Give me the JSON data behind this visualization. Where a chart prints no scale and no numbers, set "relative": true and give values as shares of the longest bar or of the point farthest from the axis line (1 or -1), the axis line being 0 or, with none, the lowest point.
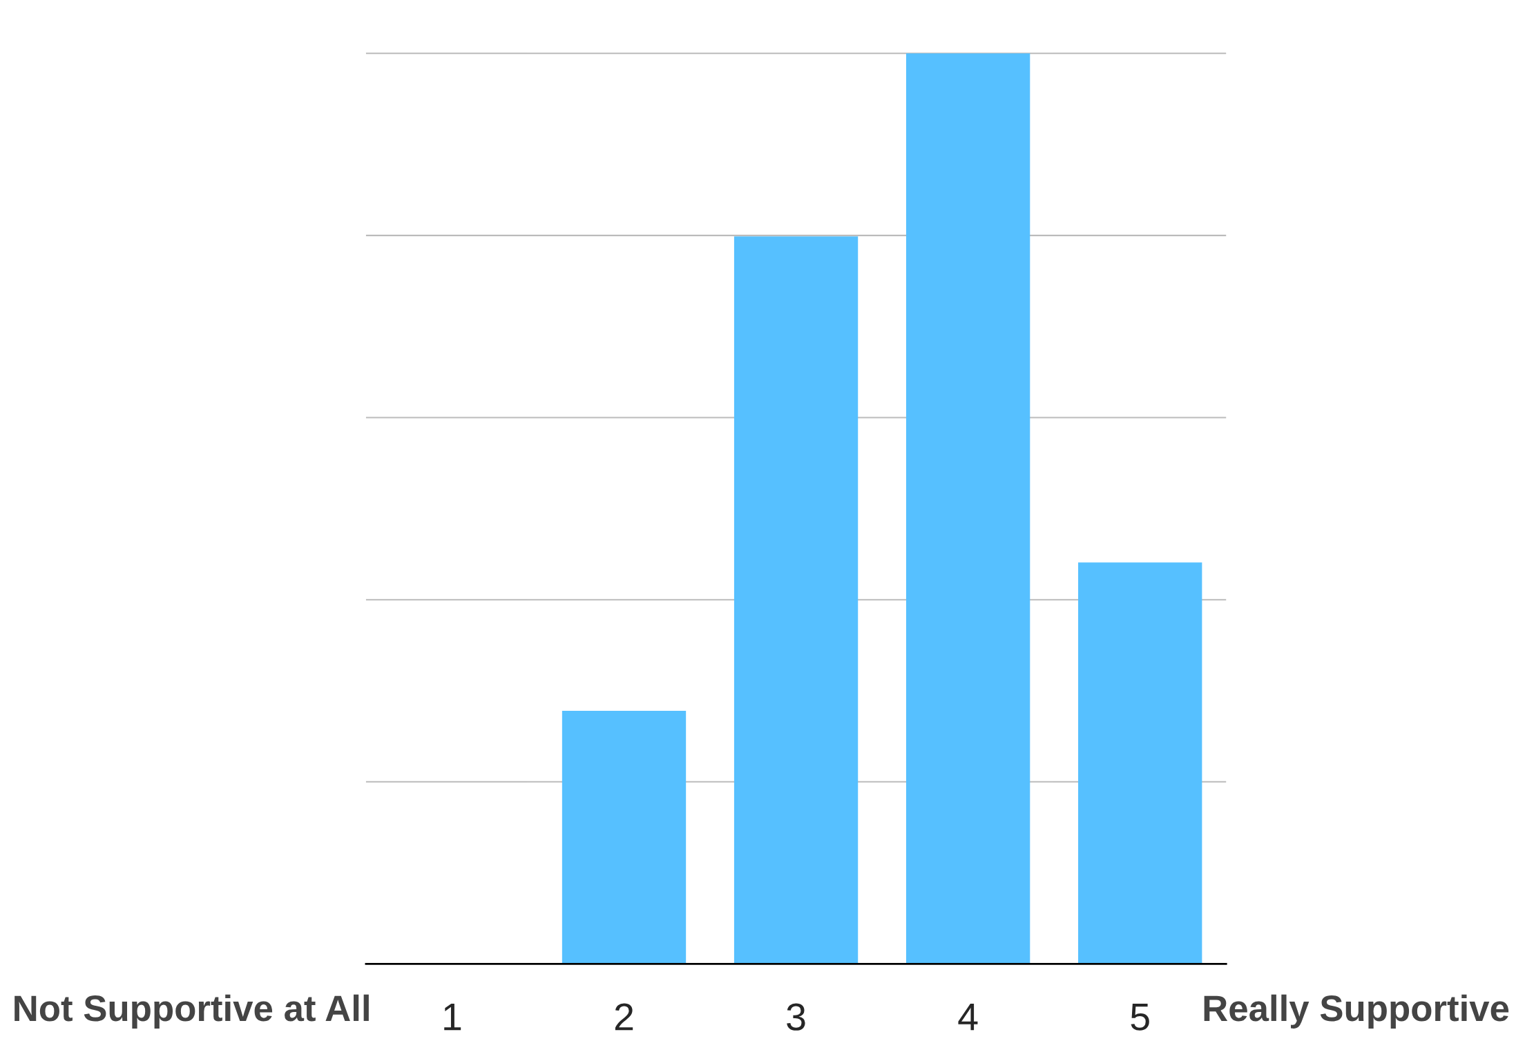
{
  "chart_data": {
    "type": "bar",
    "relative": true,
    "categories": [
      "1",
      "2",
      "3",
      "4",
      "5"
    ],
    "values": [
      0,
      0.278,
      0.799,
      1,
      0.441
    ],
    "color": "#56c0ff",
    "grid": "y",
    "annotations": [
      "Not Supportive at All",
      "Really Supportive"
    ]
  }
}
